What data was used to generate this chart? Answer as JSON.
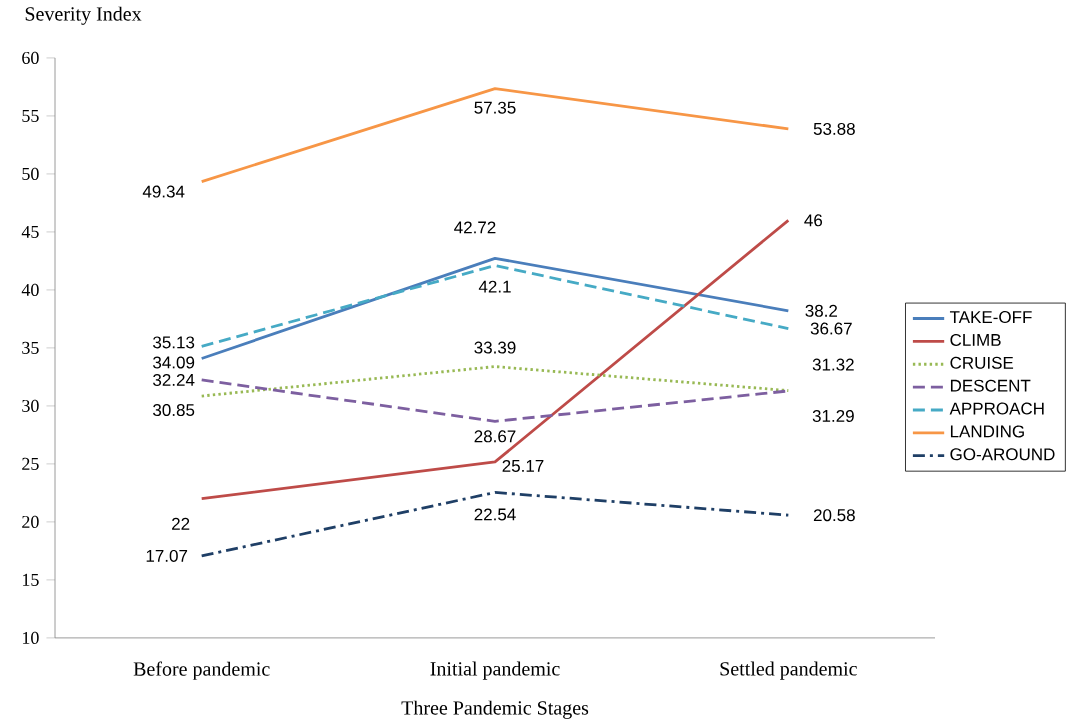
{
  "chart_data": {
    "type": "line",
    "xlabel": "Three Pandemic Stages",
    "ylabel": "Severity Index",
    "categories": [
      "Before pandemic",
      "Initial pandemic",
      "Settled pandemic"
    ],
    "ylim": [
      10,
      60
    ],
    "yticks": [
      10,
      15,
      20,
      25,
      30,
      35,
      40,
      45,
      50,
      55,
      60
    ],
    "grid": false,
    "legend": "right",
    "data_labels": true,
    "series": [
      {
        "name": "TAKE-OFF",
        "color": "#4a7ebb",
        "values": [
          34.09,
          42.72,
          38.2
        ],
        "line_style": "solid"
      },
      {
        "name": "CLIMB",
        "color": "#be4b48",
        "values": [
          22,
          25.17,
          46
        ],
        "marker": "none",
        "line_style": "solid"
      },
      {
        "name": "CRUISE",
        "color": "#98b954",
        "values": [
          30.85,
          33.39,
          31.32
        ],
        "marker": "none",
        "line_style": "dotted"
      },
      {
        "name": "DESCENT",
        "color": "#7d5fa0",
        "values": [
          32.24,
          28.67,
          31.29
        ],
        "line_style": "dashed"
      },
      {
        "name": "APPROACH",
        "color": "#46aac5",
        "values": [
          35.13,
          42.1,
          36.67
        ],
        "marker": "none",
        "line_style": "dashed"
      },
      {
        "name": "LANDING",
        "color": "#f79646",
        "values": [
          49.34,
          57.35,
          53.88
        ],
        "line_style": "solid"
      },
      {
        "name": "GO-AROUND",
        "color": "#1f3f66",
        "values": [
          17.07,
          22.54,
          20.58
        ],
        "marker": "none",
        "line_style": "dashdot"
      }
    ]
  }
}
